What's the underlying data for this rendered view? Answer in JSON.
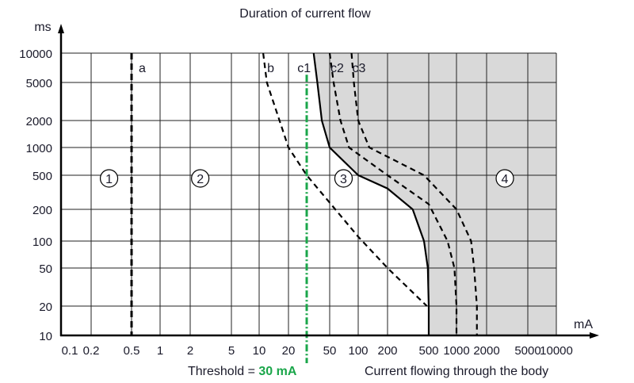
{
  "chart_data": {
    "type": "line",
    "title": "Duration of current flow",
    "xlabel": "Current flowing through the body",
    "ylabel": "",
    "x_unit": "mA",
    "y_unit": "ms",
    "x_scale": "log",
    "y_scale": "log",
    "xlim": [
      0.1,
      10000
    ],
    "ylim": [
      10,
      10000
    ],
    "grid": true,
    "x_ticks": [
      "0.1",
      "0.2",
      "0.5",
      "1",
      "2",
      "5",
      "10",
      "20",
      "50",
      "100",
      "200",
      "500",
      "1000",
      "2000",
      "5000",
      "10000"
    ],
    "y_ticks": [
      "10",
      "20",
      "50",
      "100",
      "200",
      "500",
      "1000",
      "2000",
      "5000",
      "10000"
    ],
    "series": [
      {
        "name": "a",
        "style": "dashed",
        "points": [
          [
            0.5,
            10000
          ],
          [
            0.5,
            10
          ]
        ]
      },
      {
        "name": "b",
        "style": "dashed",
        "points": [
          [
            11,
            10000
          ],
          [
            12,
            5000
          ],
          [
            20,
            1000
          ],
          [
            30,
            500
          ],
          [
            100,
            110
          ],
          [
            200,
            50
          ],
          [
            480,
            20
          ]
        ]
      },
      {
        "name": "c1",
        "style": "solid",
        "points": [
          [
            35,
            10000
          ],
          [
            38,
            5000
          ],
          [
            42,
            2000
          ],
          [
            50,
            1000
          ],
          [
            100,
            500
          ],
          [
            200,
            350
          ],
          [
            350,
            200
          ],
          [
            450,
            100
          ],
          [
            490,
            50
          ],
          [
            500,
            20
          ],
          [
            500,
            10
          ]
        ]
      },
      {
        "name": "c2",
        "style": "dashed",
        "points": [
          [
            50,
            10000
          ],
          [
            55,
            5000
          ],
          [
            65,
            2000
          ],
          [
            80,
            1000
          ],
          [
            200,
            500
          ],
          [
            500,
            230
          ],
          [
            800,
            100
          ],
          [
            950,
            50
          ],
          [
            1000,
            20
          ],
          [
            1000,
            10
          ]
        ]
      },
      {
        "name": "c3",
        "style": "dashed",
        "points": [
          [
            85,
            10000
          ],
          [
            90,
            5000
          ],
          [
            100,
            2000
          ],
          [
            130,
            1000
          ],
          [
            450,
            500
          ],
          [
            1000,
            200
          ],
          [
            1400,
            100
          ],
          [
            1500,
            50
          ],
          [
            1600,
            20
          ],
          [
            1600,
            10
          ]
        ]
      }
    ],
    "zones": [
      {
        "label": "1",
        "x": 0.3,
        "y": 300
      },
      {
        "label": "2",
        "x": 2.5,
        "y": 300
      },
      {
        "label": "3",
        "x": 70,
        "y": 300
      },
      {
        "label": "4",
        "x": 3000,
        "y": 300
      }
    ],
    "threshold": {
      "prefix": "Threshold = ",
      "value_label": "30 mA",
      "x": 30,
      "color": "#1aa64a"
    },
    "shaded_region_color": "#d9d9d9"
  }
}
